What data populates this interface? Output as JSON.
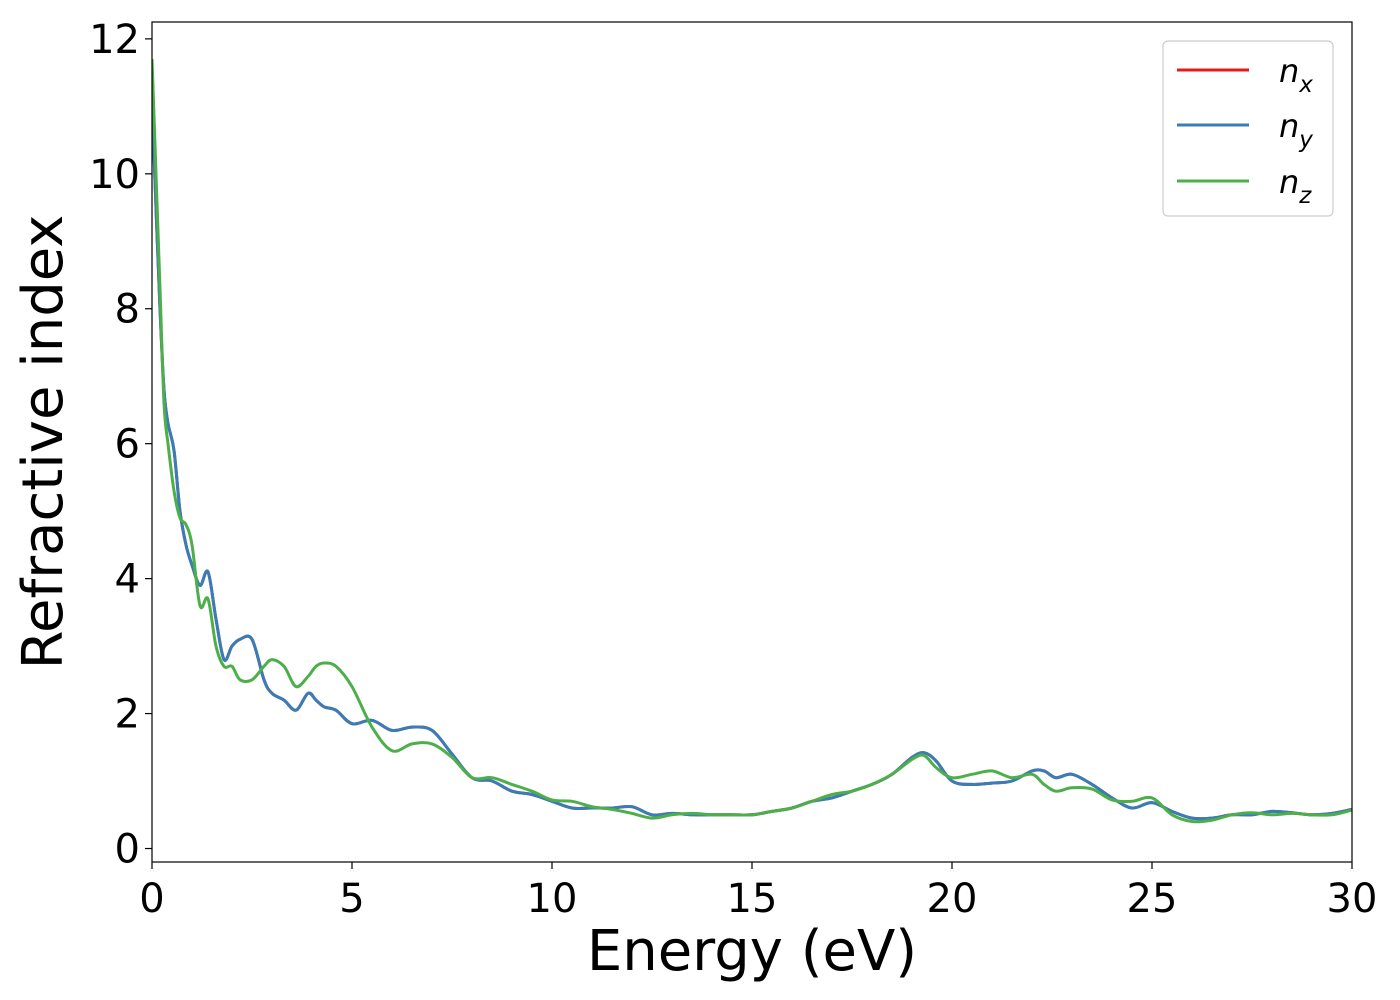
{
  "chart_data": {
    "type": "line",
    "title": "",
    "xlabel": "Energy (eV)",
    "ylabel": "Refractive index",
    "xlim": [
      0,
      30
    ],
    "ylim": [
      -0.2,
      12.25
    ],
    "xticks": [
      0,
      5,
      10,
      15,
      20,
      25,
      30
    ],
    "yticks": [
      0,
      2,
      4,
      6,
      8,
      10,
      12
    ],
    "grid": false,
    "legend_position": "top-right",
    "series": [
      {
        "name": "n_x",
        "label_base": "n",
        "label_sub": "x",
        "color": "#e41a1c",
        "x": [
          0.0,
          0.1,
          0.2,
          0.3,
          0.4,
          0.55,
          0.7,
          0.85,
          1.0,
          1.2,
          1.4,
          1.6,
          1.8,
          2.0,
          2.2,
          2.5,
          2.8,
          3.0,
          3.3,
          3.6,
          3.9,
          4.1,
          4.3,
          4.6,
          5.0,
          5.5,
          6.0,
          6.5,
          7.0,
          7.5,
          8.0,
          8.5,
          9.0,
          9.5,
          10.0,
          10.5,
          11.0,
          11.5,
          12.0,
          12.5,
          13.0,
          13.5,
          14.0,
          14.5,
          15.0,
          15.5,
          16.0,
          16.5,
          17.0,
          17.5,
          18.0,
          18.5,
          19.0,
          19.3,
          19.6,
          20.0,
          20.5,
          21.0,
          21.5,
          22.0,
          22.3,
          22.6,
          23.0,
          23.5,
          24.0,
          24.5,
          25.0,
          25.5,
          26.0,
          26.5,
          27.0,
          27.5,
          28.0,
          28.5,
          29.0,
          29.5,
          30.0
        ],
        "y": [
          11.1,
          9.5,
          8.0,
          6.8,
          6.3,
          5.9,
          5.0,
          4.5,
          4.2,
          3.9,
          4.1,
          3.4,
          2.8,
          3.0,
          3.1,
          3.1,
          2.5,
          2.3,
          2.2,
          2.05,
          2.3,
          2.2,
          2.1,
          2.05,
          1.85,
          1.9,
          1.75,
          1.8,
          1.75,
          1.4,
          1.05,
          1.0,
          0.85,
          0.8,
          0.7,
          0.6,
          0.6,
          0.6,
          0.62,
          0.5,
          0.52,
          0.5,
          0.5,
          0.5,
          0.5,
          0.55,
          0.6,
          0.7,
          0.75,
          0.85,
          0.95,
          1.1,
          1.35,
          1.42,
          1.3,
          1.0,
          0.95,
          0.97,
          1.0,
          1.15,
          1.15,
          1.05,
          1.1,
          0.95,
          0.75,
          0.6,
          0.68,
          0.55,
          0.45,
          0.45,
          0.5,
          0.5,
          0.55,
          0.53,
          0.5,
          0.52,
          0.58
        ]
      },
      {
        "name": "n_y",
        "label_base": "n",
        "label_sub": "y",
        "color": "#377eb8",
        "x": [
          0.0,
          0.1,
          0.2,
          0.3,
          0.4,
          0.55,
          0.7,
          0.85,
          1.0,
          1.2,
          1.4,
          1.6,
          1.8,
          2.0,
          2.2,
          2.5,
          2.8,
          3.0,
          3.3,
          3.6,
          3.9,
          4.1,
          4.3,
          4.6,
          5.0,
          5.5,
          6.0,
          6.5,
          7.0,
          7.5,
          8.0,
          8.5,
          9.0,
          9.5,
          10.0,
          10.5,
          11.0,
          11.5,
          12.0,
          12.5,
          13.0,
          13.5,
          14.0,
          14.5,
          15.0,
          15.5,
          16.0,
          16.5,
          17.0,
          17.5,
          18.0,
          18.5,
          19.0,
          19.3,
          19.6,
          20.0,
          20.5,
          21.0,
          21.5,
          22.0,
          22.3,
          22.6,
          23.0,
          23.5,
          24.0,
          24.5,
          25.0,
          25.5,
          26.0,
          26.5,
          27.0,
          27.5,
          28.0,
          28.5,
          29.0,
          29.5,
          30.0
        ],
        "y": [
          11.1,
          9.5,
          8.0,
          6.8,
          6.3,
          5.9,
          5.0,
          4.5,
          4.2,
          3.9,
          4.1,
          3.4,
          2.8,
          3.0,
          3.1,
          3.1,
          2.5,
          2.3,
          2.2,
          2.05,
          2.3,
          2.2,
          2.1,
          2.05,
          1.85,
          1.9,
          1.75,
          1.8,
          1.75,
          1.4,
          1.05,
          1.0,
          0.85,
          0.8,
          0.7,
          0.6,
          0.6,
          0.6,
          0.62,
          0.5,
          0.52,
          0.5,
          0.5,
          0.5,
          0.5,
          0.55,
          0.6,
          0.7,
          0.75,
          0.85,
          0.95,
          1.1,
          1.35,
          1.42,
          1.3,
          1.0,
          0.95,
          0.97,
          1.0,
          1.15,
          1.15,
          1.05,
          1.1,
          0.95,
          0.75,
          0.6,
          0.68,
          0.55,
          0.45,
          0.45,
          0.5,
          0.5,
          0.55,
          0.53,
          0.5,
          0.52,
          0.58
        ]
      },
      {
        "name": "n_z",
        "label_base": "n",
        "label_sub": "z",
        "color": "#4daf4a",
        "x": [
          0.0,
          0.1,
          0.2,
          0.3,
          0.4,
          0.55,
          0.7,
          0.85,
          1.0,
          1.2,
          1.4,
          1.6,
          1.8,
          2.0,
          2.2,
          2.5,
          2.8,
          3.0,
          3.3,
          3.6,
          3.9,
          4.1,
          4.3,
          4.6,
          5.0,
          5.5,
          6.0,
          6.5,
          7.0,
          7.5,
          8.0,
          8.5,
          9.0,
          9.5,
          10.0,
          10.5,
          11.0,
          11.5,
          12.0,
          12.5,
          13.0,
          13.5,
          14.0,
          14.5,
          15.0,
          15.5,
          16.0,
          16.5,
          17.0,
          17.5,
          18.0,
          18.5,
          19.0,
          19.3,
          19.6,
          20.0,
          20.5,
          21.0,
          21.5,
          22.0,
          22.3,
          22.6,
          23.0,
          23.5,
          24.0,
          24.5,
          25.0,
          25.5,
          26.0,
          26.5,
          27.0,
          27.5,
          28.0,
          28.5,
          29.0,
          29.5,
          30.0
        ],
        "y": [
          11.7,
          10.0,
          8.3,
          6.6,
          6.0,
          5.3,
          4.9,
          4.8,
          4.5,
          3.6,
          3.7,
          3.0,
          2.7,
          2.7,
          2.5,
          2.5,
          2.7,
          2.8,
          2.7,
          2.4,
          2.55,
          2.7,
          2.75,
          2.7,
          2.4,
          1.8,
          1.45,
          1.55,
          1.55,
          1.35,
          1.05,
          1.05,
          0.95,
          0.85,
          0.72,
          0.7,
          0.62,
          0.58,
          0.52,
          0.45,
          0.5,
          0.52,
          0.5,
          0.5,
          0.5,
          0.55,
          0.6,
          0.7,
          0.8,
          0.85,
          0.95,
          1.1,
          1.32,
          1.38,
          1.2,
          1.05,
          1.1,
          1.15,
          1.05,
          1.1,
          0.95,
          0.85,
          0.9,
          0.88,
          0.72,
          0.7,
          0.75,
          0.5,
          0.4,
          0.42,
          0.5,
          0.53,
          0.5,
          0.52,
          0.5,
          0.5,
          0.57
        ]
      }
    ]
  }
}
